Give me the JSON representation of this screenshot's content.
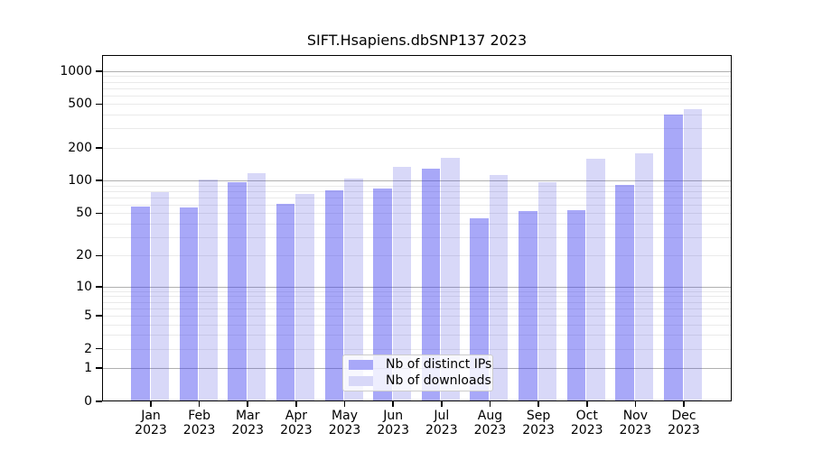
{
  "chart_data": {
    "type": "bar",
    "title": "SIFT.Hsapiens.dbSNP137 2023",
    "year": "2023",
    "categories": [
      "Jan",
      "Feb",
      "Mar",
      "Apr",
      "May",
      "Jun",
      "Jul",
      "Aug",
      "Sep",
      "Oct",
      "Nov",
      "Dec"
    ],
    "series": [
      {
        "name": "Nb of distinct IPs",
        "values": [
          58,
          57,
          96,
          61,
          82,
          85,
          128,
          45,
          52,
          53,
          92,
          398
        ],
        "color": "rgba(62,62,239,0.45)",
        "legend_color": "#a8a8f8"
      },
      {
        "name": "Nb of downloads",
        "values": [
          78,
          102,
          118,
          76,
          105,
          134,
          162,
          112,
          97,
          158,
          178,
          452
        ],
        "color": "rgba(60,60,220,0.20)",
        "legend_color": "#d8d8f8"
      }
    ],
    "y_axis": {
      "scale": "log1p",
      "ticks": [
        0,
        1,
        2,
        5,
        10,
        20,
        50,
        100,
        200,
        500,
        1000
      ],
      "major_gridlines": [
        1,
        10,
        100,
        1000
      ],
      "minor_gridlines": [
        2,
        3,
        4,
        5,
        6,
        7,
        8,
        9,
        20,
        30,
        40,
        50,
        60,
        70,
        80,
        90,
        200,
        300,
        400,
        500,
        600,
        700,
        800,
        900
      ],
      "ylim": [
        0,
        1000
      ]
    },
    "legend": {
      "position": "bottom-center",
      "entries": [
        "Nb of distinct IPs",
        "Nb of downloads"
      ]
    },
    "colors": {
      "grid_major": "#b0b0b0",
      "grid_minor": "#eaeaea",
      "axis": "#000000",
      "background": "#ffffff"
    }
  }
}
